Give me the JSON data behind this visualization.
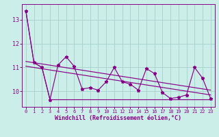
{
  "title": "",
  "xlabel": "Windchill (Refroidissement éolien,°C)",
  "background_color": "#cceee8",
  "grid_color": "#aad4ce",
  "line_color": "#880088",
  "x": [
    0,
    1,
    2,
    3,
    4,
    5,
    6,
    7,
    8,
    9,
    10,
    11,
    12,
    13,
    14,
    15,
    16,
    17,
    18,
    19,
    20,
    21,
    22,
    23
  ],
  "y_main": [
    13.35,
    11.2,
    11.0,
    9.65,
    11.1,
    11.45,
    11.05,
    10.1,
    10.15,
    10.05,
    10.4,
    11.0,
    10.4,
    10.3,
    10.05,
    10.95,
    10.75,
    9.95,
    9.7,
    9.75,
    9.85,
    11.0,
    10.55,
    9.7
  ],
  "y_flat": [
    13.35,
    11.2,
    11.0,
    9.65,
    9.65,
    9.65,
    9.65,
    9.65,
    9.65,
    9.65,
    9.65,
    9.65,
    9.65,
    9.65,
    9.65,
    9.65,
    9.65,
    9.65,
    9.65,
    9.65,
    9.65,
    9.65,
    9.65,
    9.65
  ],
  "trend1_x": [
    0,
    23
  ],
  "trend1_y": [
    11.25,
    10.05
  ],
  "trend2_x": [
    0,
    23
  ],
  "trend2_y": [
    11.05,
    9.85
  ],
  "ylim": [
    9.35,
    13.65
  ],
  "xlim": [
    -0.5,
    23.5
  ],
  "yticks": [
    10,
    11,
    12,
    13
  ],
  "xticks": [
    0,
    1,
    2,
    3,
    4,
    5,
    6,
    7,
    8,
    9,
    10,
    11,
    12,
    13,
    14,
    15,
    16,
    17,
    18,
    19,
    20,
    21,
    22,
    23
  ]
}
